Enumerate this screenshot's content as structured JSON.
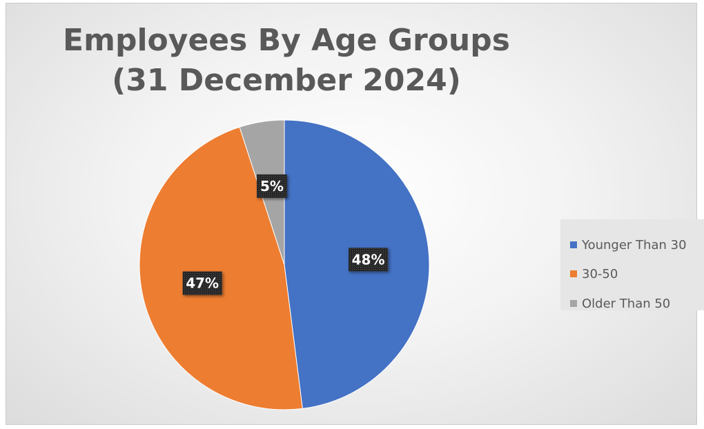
{
  "chart_data": {
    "type": "pie",
    "title_lines": [
      "Employees By Age Groups",
      "(31 December 2024)"
    ],
    "categories": [
      "Younger Than 30",
      "30-50",
      "Older Than 50"
    ],
    "values": [
      48,
      47,
      5
    ],
    "data_labels": [
      "48%",
      "47%",
      "5%"
    ],
    "colors": [
      "#4472C4",
      "#ED7D31",
      "#A5A5A5"
    ],
    "legend_position": "right",
    "start_angle_deg": 0,
    "direction": "clockwise"
  }
}
